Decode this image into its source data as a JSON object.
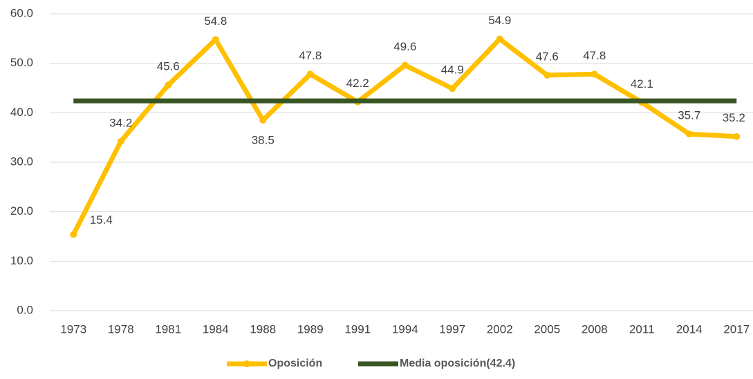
{
  "chart_data": {
    "type": "line",
    "categories": [
      "1973",
      "1978",
      "1981",
      "1984",
      "1988",
      "1989",
      "1991",
      "1994",
      "1997",
      "2002",
      "2005",
      "2008",
      "2011",
      "2014",
      "2017"
    ],
    "series": [
      {
        "name": "Oposición",
        "color": "#FFC000",
        "values": [
          15.4,
          34.2,
          45.6,
          54.8,
          38.5,
          47.8,
          42.2,
          49.6,
          44.9,
          54.9,
          47.6,
          47.8,
          42.1,
          35.7,
          35.2
        ]
      },
      {
        "name": "Media oposición(42.4)",
        "color": "#375623",
        "values": [
          42.4,
          42.4,
          42.4,
          42.4,
          42.4,
          42.4,
          42.4,
          42.4,
          42.4,
          42.4,
          42.4,
          42.4,
          42.4,
          42.4,
          42.4
        ]
      }
    ],
    "ylim": [
      0,
      60
    ],
    "yticks": [
      {
        "value": 0,
        "label": "0.0"
      },
      {
        "value": 10,
        "label": "10.0"
      },
      {
        "value": 20,
        "label": "20.0"
      },
      {
        "value": 30,
        "label": "30.0"
      },
      {
        "value": 40,
        "label": "40.0"
      },
      {
        "value": 50,
        "label": "50.0"
      },
      {
        "value": 60,
        "label": "60.0"
      }
    ],
    "grid": true,
    "legend": "bottom"
  }
}
